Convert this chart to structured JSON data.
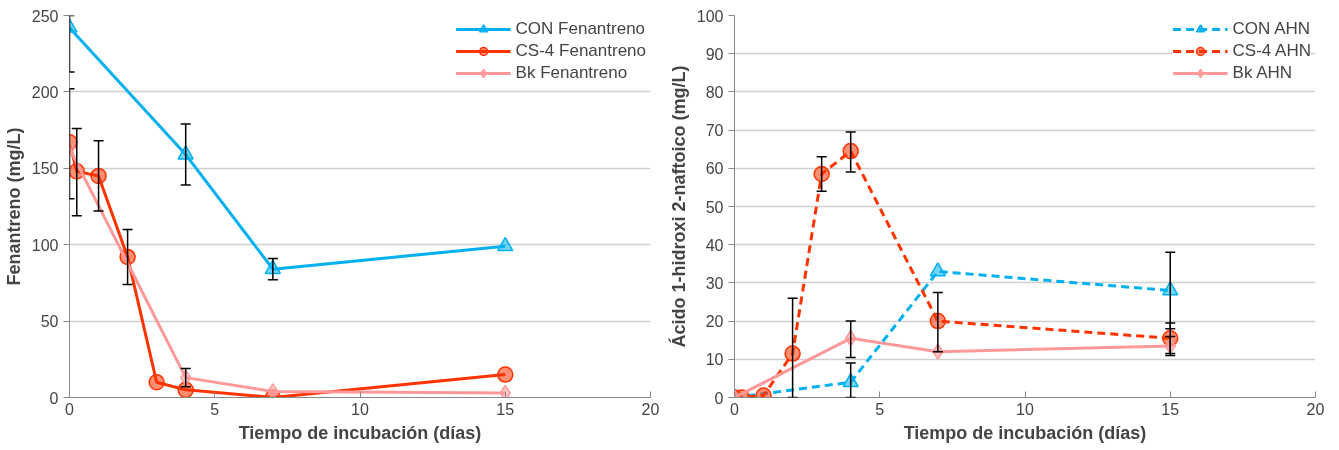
{
  "chart_data": [
    {
      "type": "line",
      "xlabel": "Tiempo de incubación (días)",
      "ylabel": "Fenantreno (mg/L)",
      "xlim": [
        0,
        20
      ],
      "xticks": [
        0,
        5,
        10,
        15,
        20
      ],
      "ylim": [
        0,
        250
      ],
      "yticks": [
        0,
        50,
        100,
        150,
        200,
        250
      ],
      "grid": "y",
      "legend": "top right",
      "series": [
        {
          "name": "CON Fenantreno",
          "color": "#00b0f0",
          "marker": "triangle",
          "line_style": "solid",
          "x": [
            0,
            4,
            7,
            15
          ],
          "values": [
            242,
            159,
            84,
            99
          ],
          "errors": [
            [
              213,
              250
            ],
            20,
            7,
            null
          ]
        },
        {
          "name": "CS-4 Fenantreno",
          "color": "#ff3300",
          "marker": "circle",
          "line_style": "solid",
          "x": [
            0,
            0.25,
            1,
            2,
            3,
            4,
            7,
            15
          ],
          "values": [
            167,
            148,
            145,
            92,
            10,
            5,
            0,
            15
          ],
          "errors": [
            null,
            [
              119,
              176
            ],
            [
              122,
              168
            ],
            [
              74,
              110
            ],
            null,
            null,
            null,
            null
          ]
        },
        {
          "name": "Bk Fenantreno",
          "color": "#ff9999",
          "marker": "diamond",
          "line_style": "solid",
          "x": [
            0,
            4,
            7,
            15
          ],
          "values": [
            163,
            13,
            4,
            3
          ],
          "errors": [
            [
              130,
              202
            ],
            [
              7,
              19
            ],
            null,
            null
          ]
        }
      ]
    },
    {
      "type": "line",
      "xlabel": "Tiempo de incubación (días)",
      "ylabel": "Ácido 1-hidroxi 2-naftoico (mg/L)",
      "xlim": [
        0,
        20
      ],
      "xticks": [
        0,
        5,
        10,
        15,
        20
      ],
      "ylim": [
        0,
        100
      ],
      "yticks": [
        0,
        10,
        20,
        30,
        40,
        50,
        60,
        70,
        80,
        90,
        100
      ],
      "grid": "y",
      "legend": "top right",
      "series": [
        {
          "name": "CON AHN",
          "color": "#00b0f0",
          "marker": "triangle",
          "line_style": "dashed",
          "x": [
            0,
            4,
            7,
            15
          ],
          "values": [
            0,
            4,
            33,
            28
          ],
          "errors": [
            null,
            [
              0,
              9
            ],
            null,
            [
              18,
              38
            ]
          ]
        },
        {
          "name": "CS-4 AHN",
          "color": "#ff3300",
          "marker": "circle",
          "line_style": "dashed",
          "x": [
            0,
            0.25,
            1,
            2,
            3,
            4,
            7,
            15
          ],
          "values": [
            0,
            0,
            0.5,
            11.5,
            58.5,
            64.5,
            20,
            15.5
          ],
          "errors": [
            null,
            null,
            null,
            [
              0,
              26
            ],
            [
              54,
              63
            ],
            [
              59,
              69.5
            ],
            [
              12,
              27.5
            ],
            [
              11.5,
              19.5
            ]
          ]
        },
        {
          "name": "Bk AHN",
          "color": "#ff9999",
          "marker": "diamond",
          "line_style": "solid",
          "x": [
            0,
            4,
            7,
            15
          ],
          "values": [
            0,
            15.5,
            12,
            13.5
          ],
          "errors": [
            null,
            [
              10.5,
              20
            ],
            null,
            [
              11,
              16
            ]
          ]
        }
      ]
    }
  ]
}
